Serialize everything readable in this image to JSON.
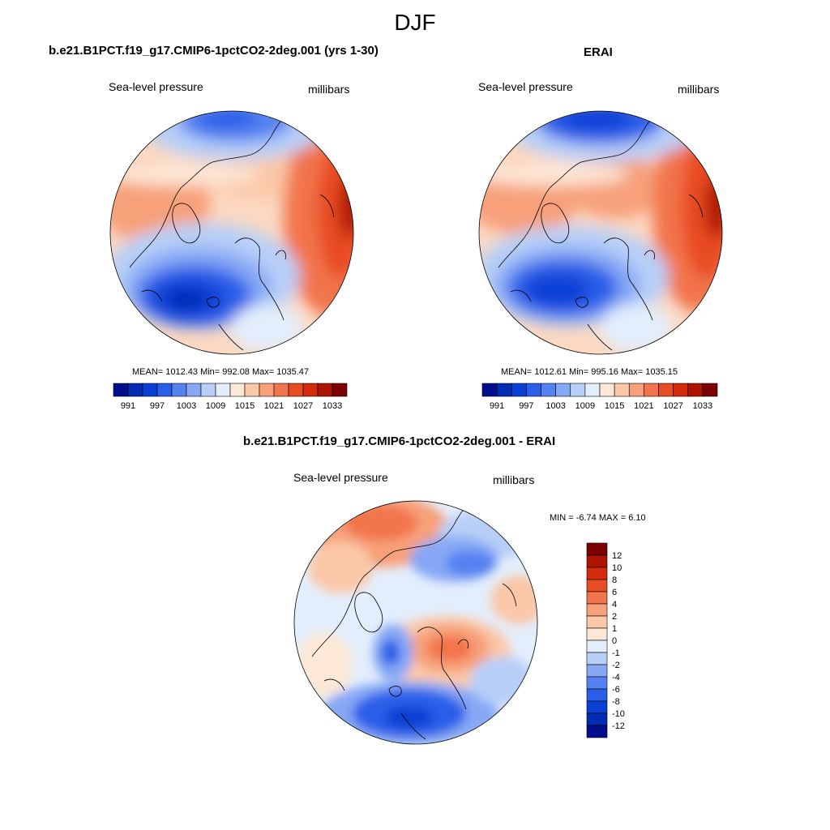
{
  "figure": {
    "title": "DJF"
  },
  "colors": {
    "palette": [
      "#000d8c",
      "#002bb3",
      "#0a3fd6",
      "#2a5ee8",
      "#5582f0",
      "#86a8f5",
      "#b8cff8",
      "#e3eefc",
      "#fde7d6",
      "#fbc8a8",
      "#f7a07a",
      "#f2744c",
      "#e84c22",
      "#d32a0c",
      "#ad1400",
      "#7c0000"
    ],
    "coast": "#000000"
  },
  "panels": [
    {
      "id": "model",
      "title": "b.e21.B1PCT.f19_g17.CMIP6-1pctCO2-2deg.001 (yrs 1-30)",
      "left_label": "Sea-level pressure",
      "right_label": "millibars",
      "stats": "MEAN= 1012.43  Min= 992.08  Max= 1035.47"
    },
    {
      "id": "obs",
      "title": "ERAI",
      "left_label": "Sea-level pressure",
      "right_label": "millibars",
      "stats": "MEAN= 1012.61  Min= 995.16  Max= 1035.15"
    },
    {
      "id": "diff",
      "title": "b.e21.B1PCT.f19_g17.CMIP6-1pctCO2-2deg.001 - ERAI",
      "left_label": "Sea-level pressure",
      "right_label": "millibars",
      "stats": "MIN =  -6.74 MAX =   6.10"
    }
  ],
  "colorbar_abs": {
    "ticks": [
      "991",
      "997",
      "1003",
      "1009",
      "1015",
      "1021",
      "1027",
      "1033"
    ]
  },
  "colorbar_diff": {
    "ticks": [
      "12",
      "10",
      "8",
      "6",
      "4",
      "2",
      "1",
      "0",
      "-1",
      "-2",
      "-4",
      "-6",
      "-8",
      "-10",
      "-12"
    ]
  }
}
